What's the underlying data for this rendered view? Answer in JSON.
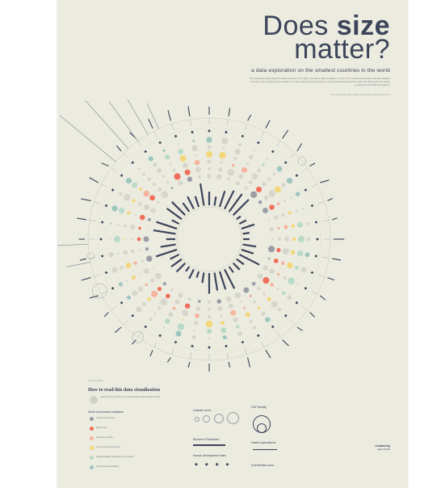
{
  "header": {
    "title_light": "Does ",
    "title_bold": "size",
    "title_line2": "matter?",
    "subtitle": "a data exploration on the smallest countries in the world",
    "intro": "This visualization shows how the smallest countries in the world - less than 1 million inhabitants - score on the six World Governance Indicators. Besides a number of other indicators are visualized: for instance the total of the countries on the Human Development Index (HDI), the GDP density, the women in parliament and health expenditures.",
    "note": "This visualization was created for the MakeoverMonday Iron Viz"
  },
  "legend": {
    "kicker": "HOW TO READ",
    "title": "How to read this data visualization",
    "wgi_head": "World Governance Indicators",
    "indicator_head": "Indicator score",
    "gdp_head": "GDP density",
    "women_head": "Women in Parliament",
    "health_head": "Health expenditures",
    "hdi_head": "Human Development Index",
    "civil_head": "Civil liberties score",
    "items": [
      "Control of corruption",
      "Rule of law",
      "Regulatory quality",
      "Government effectiveness",
      "Political stability and absence of violence",
      "Voice and accountability"
    ]
  },
  "credits": {
    "heading": "Created by",
    "name": "Sean Smith"
  },
  "colors": {
    "navy": "#3b4459",
    "grey": "#9a9ea6",
    "lightgrey": "#cfd1c9",
    "red": "#f06e5a",
    "peach": "#f5b49e",
    "yellow": "#f3d77a",
    "mint": "#b9d9c9",
    "teal": "#9dc6bf"
  }
}
